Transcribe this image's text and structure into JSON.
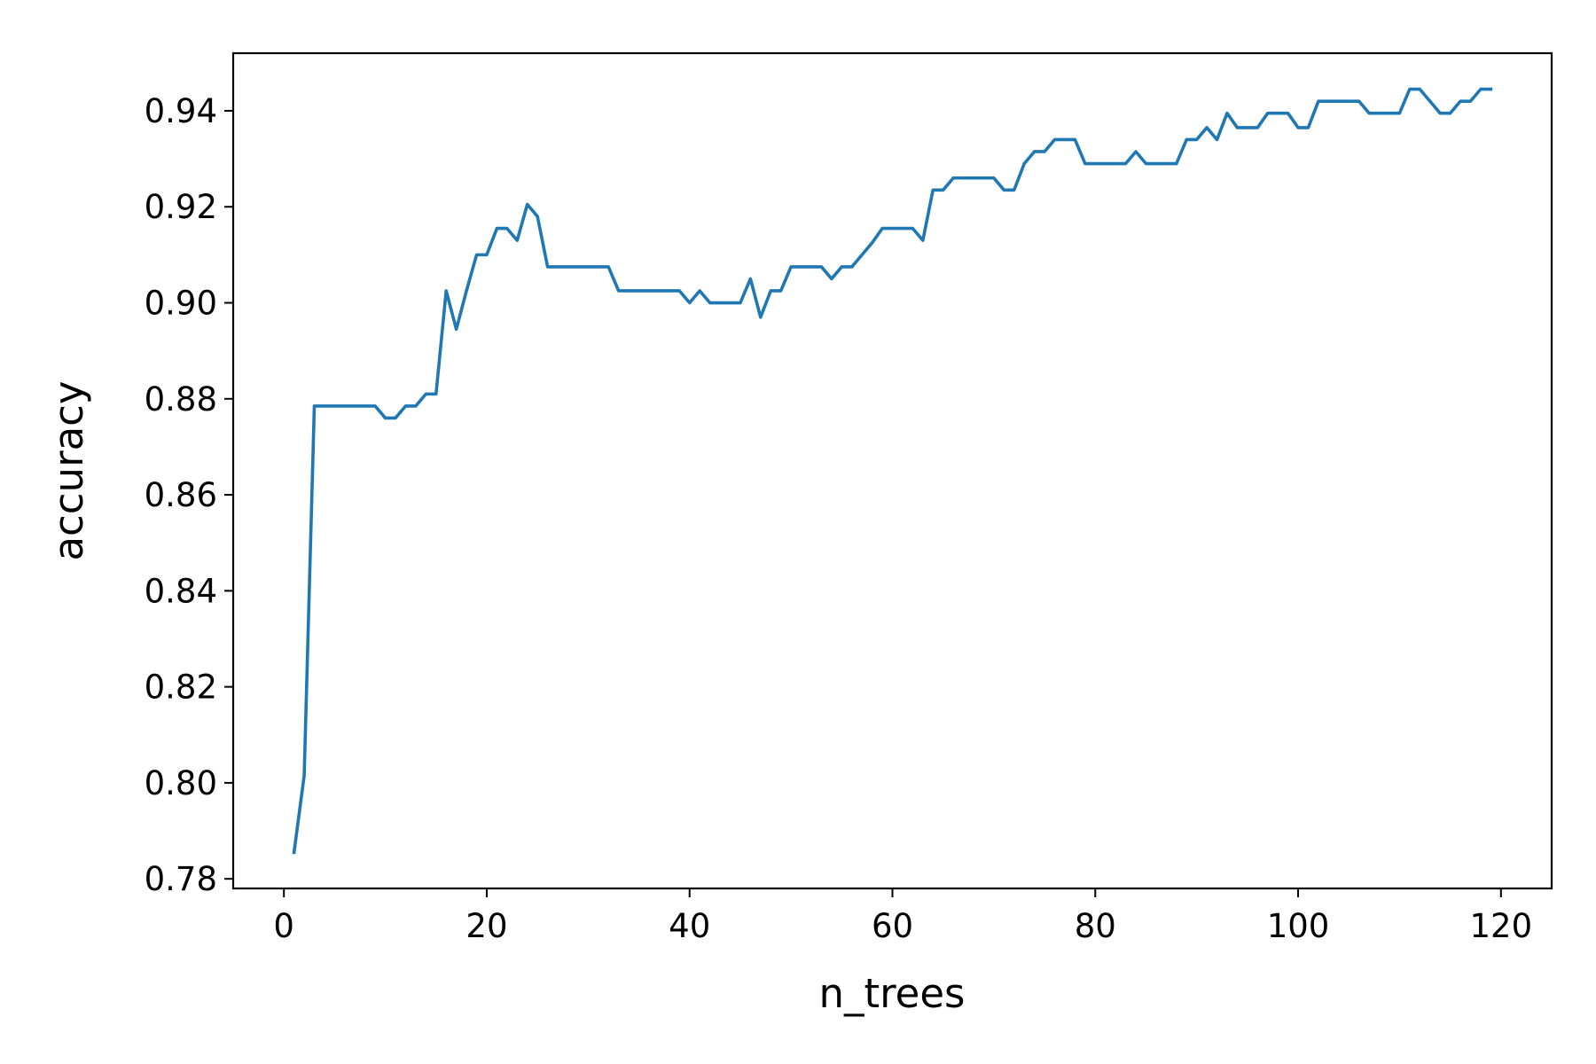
{
  "chart_data": {
    "type": "line",
    "title": "",
    "xlabel": "n_trees",
    "ylabel": "accuracy",
    "xlim": [
      -5,
      125
    ],
    "ylim": [
      0.778,
      0.952
    ],
    "xticks": [
      0,
      20,
      40,
      60,
      80,
      100,
      120
    ],
    "xtick_labels": [
      "0",
      "20",
      "40",
      "60",
      "80",
      "100",
      "120"
    ],
    "yticks": [
      0.78,
      0.8,
      0.82,
      0.84,
      0.86,
      0.88,
      0.9,
      0.92,
      0.94
    ],
    "ytick_labels": [
      "0.78",
      "0.80",
      "0.82",
      "0.84",
      "0.86",
      "0.88",
      "0.90",
      "0.92",
      "0.94"
    ],
    "grid": false,
    "line_color": "#1f77b4",
    "series": [
      {
        "name": "accuracy",
        "x": [
          1,
          2,
          3,
          4,
          5,
          6,
          7,
          8,
          9,
          10,
          11,
          12,
          13,
          14,
          15,
          16,
          17,
          18,
          19,
          20,
          21,
          22,
          23,
          24,
          25,
          26,
          27,
          28,
          29,
          30,
          31,
          32,
          33,
          34,
          35,
          36,
          37,
          38,
          39,
          40,
          41,
          42,
          43,
          44,
          45,
          46,
          47,
          48,
          49,
          50,
          51,
          52,
          53,
          54,
          55,
          56,
          57,
          58,
          59,
          60,
          61,
          62,
          63,
          64,
          65,
          66,
          67,
          68,
          69,
          70,
          71,
          72,
          73,
          74,
          75,
          76,
          77,
          78,
          79,
          80,
          81,
          82,
          83,
          84,
          85,
          86,
          87,
          88,
          89,
          90,
          91,
          92,
          93,
          94,
          95,
          96,
          97,
          98,
          99,
          100,
          101,
          102,
          103,
          104,
          105,
          106,
          107,
          108,
          109,
          110,
          111,
          112,
          113,
          114,
          115,
          116,
          117,
          118,
          119
        ],
        "values": [
          0.7855,
          0.8015,
          0.8785,
          0.8785,
          0.8785,
          0.8785,
          0.8785,
          0.8785,
          0.8785,
          0.876,
          0.876,
          0.8785,
          0.8785,
          0.881,
          0.881,
          0.9025,
          0.8945,
          0.9025,
          0.91,
          0.91,
          0.9155,
          0.9155,
          0.913,
          0.9205,
          0.918,
          0.9075,
          0.9075,
          0.9075,
          0.9075,
          0.9075,
          0.9075,
          0.9075,
          0.9025,
          0.9025,
          0.9025,
          0.9025,
          0.9025,
          0.9025,
          0.9025,
          0.9,
          0.9025,
          0.9,
          0.9,
          0.9,
          0.9,
          0.905,
          0.897,
          0.9025,
          0.9025,
          0.9075,
          0.9075,
          0.9075,
          0.9075,
          0.905,
          0.9075,
          0.9075,
          0.91,
          0.9125,
          0.9155,
          0.9155,
          0.9155,
          0.9155,
          0.913,
          0.9235,
          0.9235,
          0.926,
          0.926,
          0.926,
          0.926,
          0.926,
          0.9235,
          0.9235,
          0.929,
          0.9315,
          0.9315,
          0.934,
          0.934,
          0.934,
          0.929,
          0.929,
          0.929,
          0.929,
          0.929,
          0.9315,
          0.929,
          0.929,
          0.929,
          0.929,
          0.934,
          0.934,
          0.9365,
          0.934,
          0.9395,
          0.9365,
          0.9365,
          0.9365,
          0.9395,
          0.9395,
          0.9395,
          0.9365,
          0.9365,
          0.942,
          0.942,
          0.942,
          0.942,
          0.942,
          0.9395,
          0.9395,
          0.9395,
          0.9395,
          0.9445,
          0.9445,
          0.942,
          0.9395,
          0.9395,
          0.942,
          0.942,
          0.9445,
          0.9445
        ]
      }
    ]
  }
}
